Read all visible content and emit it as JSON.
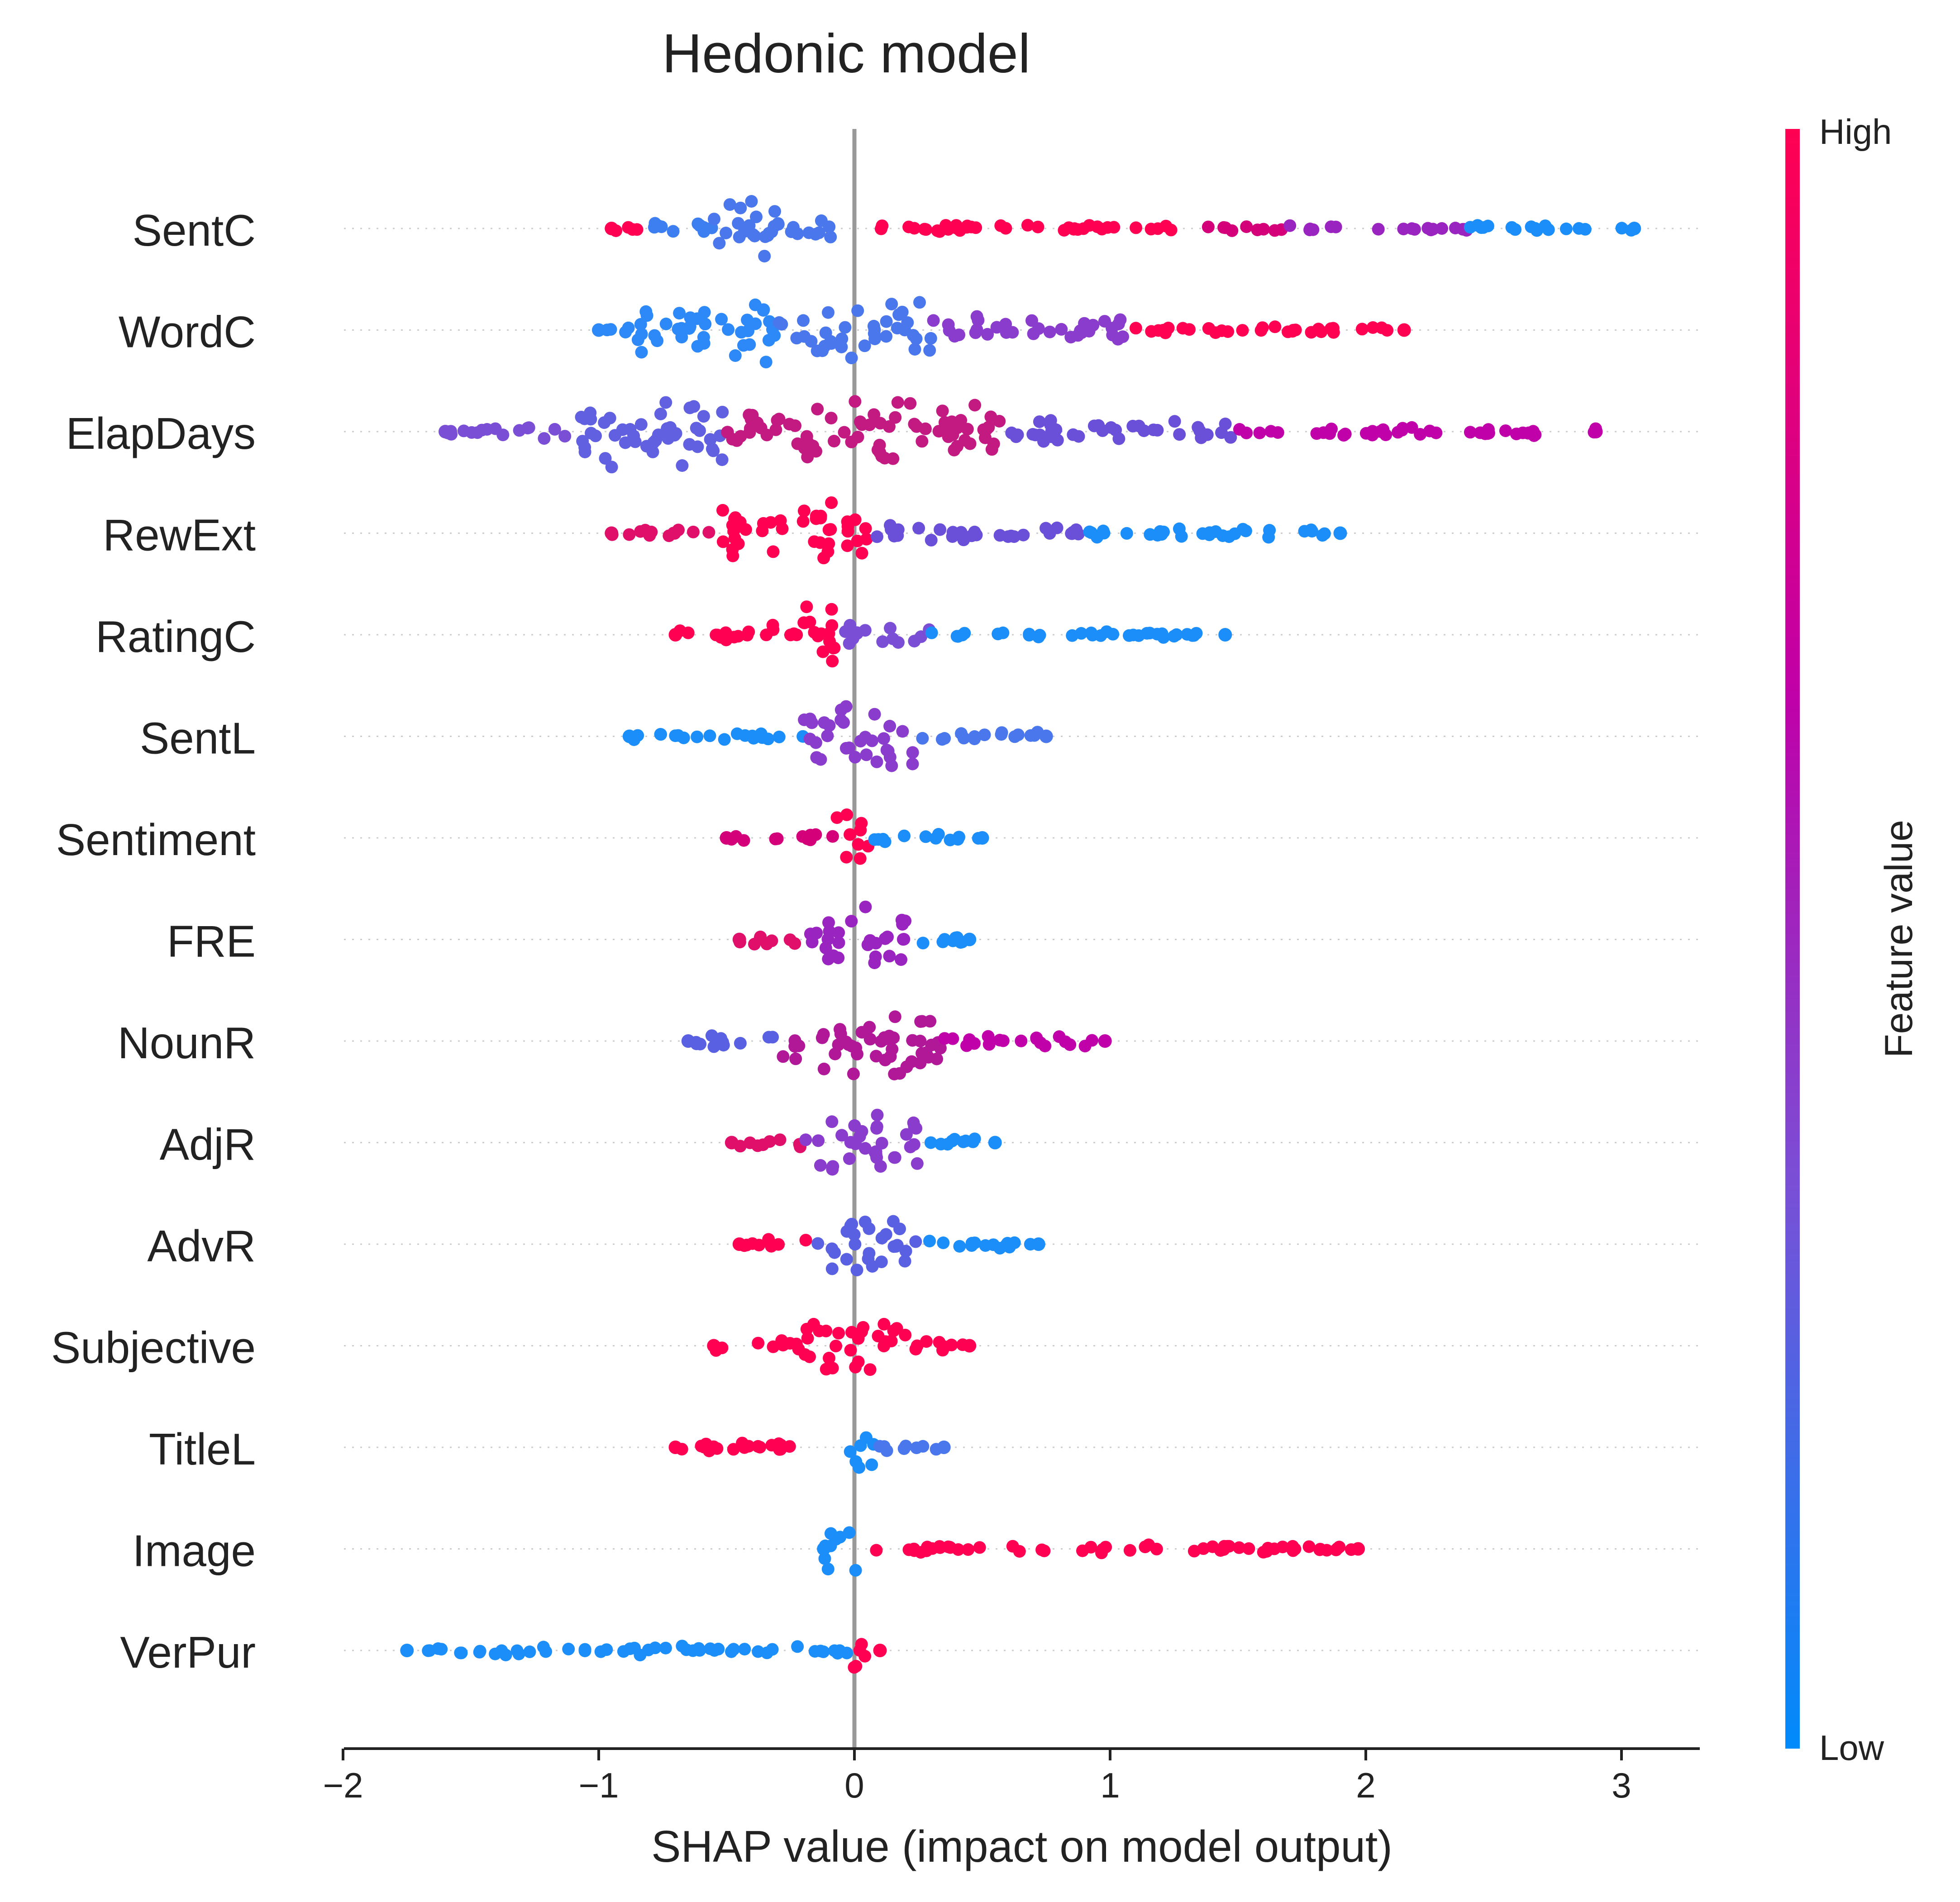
{
  "chart_data": {
    "type": "scatter",
    "subtype": "shap-beeswarm",
    "title": "Hedonic model",
    "xlabel": "SHAP value (impact on model output)",
    "xlim": [
      -2,
      3.3
    ],
    "xticks": [
      -2,
      -1,
      0,
      1,
      2,
      3
    ],
    "xtick_labels": [
      "−2",
      "−1",
      "0",
      "1",
      "2",
      "3"
    ],
    "zero_line": 0,
    "features": [
      {
        "name": "SentC",
        "min": -0.95,
        "max": 3.05,
        "segments": [
          {
            "from": -0.95,
            "to": -0.85,
            "color": "#ff0052",
            "width": 0.05
          },
          {
            "from": -0.85,
            "to": -0.55,
            "color": "#3d7ff0",
            "width": 0.25
          },
          {
            "from": -0.55,
            "to": -0.3,
            "color": "#4a78ec",
            "width": 1.0
          },
          {
            "from": -0.3,
            "to": -0.05,
            "color": "#4a78ec",
            "width": 0.35
          },
          {
            "from": -0.05,
            "to": 1.25,
            "color": "#ff0052",
            "width": 0.1
          },
          {
            "from": 1.37,
            "to": 1.7,
            "color": "#d4007a",
            "width": 0.06
          },
          {
            "from": 1.7,
            "to": 2.4,
            "color": "#9a24c0",
            "width": 0.06
          },
          {
            "from": 2.4,
            "to": 3.05,
            "color": "#1c8ef9",
            "width": 0.06
          }
        ]
      },
      {
        "name": "WordC",
        "min": -1.0,
        "max": 2.15,
        "segments": [
          {
            "from": -1.0,
            "to": -0.85,
            "color": "#2d89f7",
            "width": 0.1
          },
          {
            "from": -0.85,
            "to": -0.3,
            "color": "#2d89f7",
            "width": 0.85
          },
          {
            "from": -0.3,
            "to": 0.3,
            "color": "#4a78ec",
            "width": 0.7
          },
          {
            "from": 0.3,
            "to": 1.1,
            "color": "#8a3ccc",
            "width": 0.35
          },
          {
            "from": 1.1,
            "to": 2.15,
            "color": "#ff0052",
            "width": 0.12
          }
        ]
      },
      {
        "name": "ElapDays",
        "min": -1.6,
        "max": 2.9,
        "segments": [
          {
            "from": -1.6,
            "to": -1.1,
            "color": "#7a4fd6",
            "width": 0.2
          },
          {
            "from": -1.1,
            "to": -0.5,
            "color": "#6060e0",
            "width": 1.0
          },
          {
            "from": -0.5,
            "to": 0.6,
            "color": "#c21a80",
            "width": 0.85
          },
          {
            "from": 0.6,
            "to": 1.5,
            "color": "#6a50d8",
            "width": 0.3
          },
          {
            "from": 1.5,
            "to": 2.9,
            "color": "#c000a8",
            "width": 0.12
          }
        ]
      },
      {
        "name": "RewExt",
        "min": -0.95,
        "max": 1.9,
        "segments": [
          {
            "from": -0.95,
            "to": -0.55,
            "color": "#e0106a",
            "width": 0.12
          },
          {
            "from": -0.55,
            "to": 0.05,
            "color": "#ff0052",
            "width": 0.85
          },
          {
            "from": 0.05,
            "to": 0.9,
            "color": "#6a50d8",
            "width": 0.2
          },
          {
            "from": 0.9,
            "to": 1.9,
            "color": "#1c8ef9",
            "width": 0.12
          }
        ]
      },
      {
        "name": "RatingC",
        "min": -0.7,
        "max": 1.45,
        "segments": [
          {
            "from": -0.7,
            "to": -0.35,
            "color": "#ff0052",
            "width": 0.15
          },
          {
            "from": -0.35,
            "to": -0.05,
            "color": "#ff0052",
            "width": 0.85
          },
          {
            "from": -0.05,
            "to": 0.3,
            "color": "#7a4fd6",
            "width": 0.3
          },
          {
            "from": 0.3,
            "to": 1.45,
            "color": "#1c8ef9",
            "width": 0.1
          }
        ]
      },
      {
        "name": "SentL",
        "min": -0.88,
        "max": 0.75,
        "segments": [
          {
            "from": -0.88,
            "to": -0.2,
            "color": "#1c8ef9",
            "width": 0.1
          },
          {
            "from": -0.2,
            "to": 0.25,
            "color": "#8a3ccc",
            "width": 0.85
          },
          {
            "from": 0.25,
            "to": 0.75,
            "color": "#4a78ec",
            "width": 0.12
          }
        ]
      },
      {
        "name": "Sentiment",
        "min": -0.5,
        "max": 0.5,
        "segments": [
          {
            "from": -0.5,
            "to": -0.08,
            "color": "#d4007a",
            "width": 0.1
          },
          {
            "from": -0.08,
            "to": 0.06,
            "color": "#ff0052",
            "width": 0.75
          },
          {
            "from": 0.06,
            "to": 0.5,
            "color": "#1c8ef9",
            "width": 0.1
          }
        ]
      },
      {
        "name": "FRE",
        "min": -0.45,
        "max": 0.45,
        "segments": [
          {
            "from": -0.45,
            "to": -0.2,
            "color": "#e0106a",
            "width": 0.15
          },
          {
            "from": -0.2,
            "to": 0.2,
            "color": "#9a24c0",
            "width": 0.85
          },
          {
            "from": 0.2,
            "to": 0.45,
            "color": "#1c8ef9",
            "width": 0.15
          }
        ]
      },
      {
        "name": "NounR",
        "min": -0.65,
        "max": 0.98,
        "segments": [
          {
            "from": -0.65,
            "to": -0.3,
            "color": "#5a60e2",
            "width": 0.2
          },
          {
            "from": -0.3,
            "to": 0.35,
            "color": "#b01898",
            "width": 0.9
          },
          {
            "from": 0.35,
            "to": 0.98,
            "color": "#c000a8",
            "width": 0.15
          }
        ]
      },
      {
        "name": "AdjR",
        "min": -0.48,
        "max": 0.55,
        "segments": [
          {
            "from": -0.48,
            "to": -0.2,
            "color": "#e0106a",
            "width": 0.15
          },
          {
            "from": -0.2,
            "to": 0.25,
            "color": "#8a3ccc",
            "width": 0.85
          },
          {
            "from": 0.25,
            "to": 0.55,
            "color": "#1c8ef9",
            "width": 0.12
          }
        ]
      },
      {
        "name": "AdvR",
        "min": -0.45,
        "max": 0.72,
        "segments": [
          {
            "from": -0.45,
            "to": -0.15,
            "color": "#ff0052",
            "width": 0.15
          },
          {
            "from": -0.15,
            "to": 0.25,
            "color": "#5a60e2",
            "width": 0.85
          },
          {
            "from": 0.25,
            "to": 0.72,
            "color": "#1c8ef9",
            "width": 0.12
          }
        ]
      },
      {
        "name": "Subjective",
        "min": -0.55,
        "max": 0.45,
        "segments": [
          {
            "from": -0.55,
            "to": -0.2,
            "color": "#ff0052",
            "width": 0.15
          },
          {
            "from": -0.2,
            "to": 0.2,
            "color": "#ff0052",
            "width": 0.85
          },
          {
            "from": 0.2,
            "to": 0.45,
            "color": "#ff0052",
            "width": 0.15
          }
        ]
      },
      {
        "name": "TitleL",
        "min": -0.7,
        "max": 0.35,
        "segments": [
          {
            "from": -0.7,
            "to": -0.02,
            "color": "#ff0052",
            "width": 0.12
          },
          {
            "from": -0.02,
            "to": 0.08,
            "color": "#1c8ef9",
            "width": 0.8
          },
          {
            "from": 0.08,
            "to": 0.35,
            "color": "#4a78ec",
            "width": 0.1
          }
        ]
      },
      {
        "name": "Image",
        "min": -0.12,
        "max": 1.97,
        "segments": [
          {
            "from": -0.12,
            "to": 0.02,
            "color": "#1c8ef9",
            "width": 0.8
          },
          {
            "from": 0.08,
            "to": 1.97,
            "color": "#ff0052",
            "width": 0.12
          }
        ]
      },
      {
        "name": "VerPur",
        "min": -1.75,
        "max": 0.1,
        "segments": [
          {
            "from": -1.75,
            "to": -0.02,
            "color": "#1c8ef9",
            "width": 0.12
          },
          {
            "from": -0.02,
            "to": 0.05,
            "color": "#ff0052",
            "width": 0.8
          }
        ]
      }
    ],
    "colorbar": {
      "label": "Feature value",
      "high_label": "High",
      "low_label": "Low",
      "colors": [
        "#ff0052",
        "#c000a8",
        "#7a4fd6",
        "#008bfb"
      ]
    }
  }
}
